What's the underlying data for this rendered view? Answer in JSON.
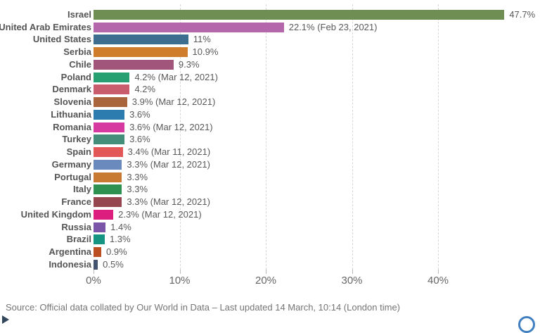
{
  "chart_data": {
    "type": "bar",
    "orientation": "horizontal",
    "title": "",
    "xlabel": "",
    "ylabel": "",
    "unit": "%",
    "xlim": [
      0,
      48
    ],
    "x_tick_values": [
      0,
      10,
      20,
      30,
      40
    ],
    "x_tick_labels": [
      "0%",
      "10%",
      "20%",
      "30%",
      "40%"
    ],
    "grid": "vertical-dashed",
    "legend": "none",
    "rows": [
      {
        "country": "Israel",
        "value": 47.7,
        "label": "47.7%",
        "color": "#6e8e54"
      },
      {
        "country": "United Arab Emirates",
        "value": 22.1,
        "label": "22.1% (Feb 23, 2021)",
        "color": "#b567ab"
      },
      {
        "country": "United States",
        "value": 11.0,
        "label": "11%",
        "color": "#3d6d8f"
      },
      {
        "country": "Serbia",
        "value": 10.9,
        "label": "10.9%",
        "color": "#cf7d2b"
      },
      {
        "country": "Chile",
        "value": 9.3,
        "label": "9.3%",
        "color": "#a2557a"
      },
      {
        "country": "Poland",
        "value": 4.2,
        "label": "4.2% (Mar 12, 2021)",
        "color": "#26a071"
      },
      {
        "country": "Denmark",
        "value": 4.2,
        "label": "4.2%",
        "color": "#c95d6e"
      },
      {
        "country": "Slovenia",
        "value": 3.9,
        "label": "3.9% (Mar 12, 2021)",
        "color": "#a9663d"
      },
      {
        "country": "Lithuania",
        "value": 3.6,
        "label": "3.6%",
        "color": "#2d7cb0"
      },
      {
        "country": "Romania",
        "value": 3.6,
        "label": "3.6% (Mar 12, 2021)",
        "color": "#d6399f"
      },
      {
        "country": "Turkey",
        "value": 3.6,
        "label": "3.6%",
        "color": "#438d7b"
      },
      {
        "country": "Spain",
        "value": 3.4,
        "label": "3.4% (Mar 11, 2021)",
        "color": "#e25858"
      },
      {
        "country": "Germany",
        "value": 3.3,
        "label": "3.3% (Mar 12, 2021)",
        "color": "#6a8abd"
      },
      {
        "country": "Portugal",
        "value": 3.3,
        "label": "3.3%",
        "color": "#c87a32"
      },
      {
        "country": "Italy",
        "value": 3.3,
        "label": "3.3%",
        "color": "#2e9152"
      },
      {
        "country": "France",
        "value": 3.3,
        "label": "3.3% (Mar 12, 2021)",
        "color": "#96464e"
      },
      {
        "country": "United Kingdom",
        "value": 2.3,
        "label": "2.3% (Mar 12, 2021)",
        "color": "#dc1f7f"
      },
      {
        "country": "Russia",
        "value": 1.4,
        "label": "1.4%",
        "color": "#7a55a8"
      },
      {
        "country": "Brazil",
        "value": 1.3,
        "label": "1.3%",
        "color": "#169482"
      },
      {
        "country": "Argentina",
        "value": 0.9,
        "label": "0.9%",
        "color": "#bc4f21"
      },
      {
        "country": "Indonesia",
        "value": 0.5,
        "label": "0.5%",
        "color": "#44546e"
      }
    ]
  },
  "footer": {
    "source": "Source: Official data collated by Our World in Data – Last updated 14 March, 10:14 (London time)"
  },
  "icons": {
    "play_icon": "timeline-play-button (cropped at bottom edge)",
    "circular_button": "round button partially visible at bottom-right edge"
  },
  "colors": {
    "grid": "#d7d7d7",
    "country_label": "#545454",
    "value_label": "#595959",
    "axis_label": "#666666",
    "source_text": "#757575",
    "accent_blue": "#4080c0"
  }
}
